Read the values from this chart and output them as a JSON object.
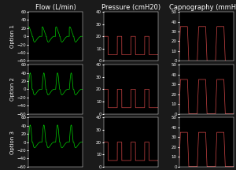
{
  "title_flow": "Flow (L/min)",
  "title_pressure": "Pressure (cmH20)",
  "title_capno": "Capnography (mmHg)",
  "row_labels": [
    "Option 1",
    "Option 2",
    "Option 3"
  ],
  "bg_color": "#000000",
  "flow_color": "#00cc00",
  "pressure_color": "#cc4444",
  "capno_color": "#cc4444",
  "flow_ylim": [
    -60,
    60
  ],
  "flow_yticks": [
    -60,
    -40,
    -20,
    0,
    20,
    40,
    60
  ],
  "pressure_ylim": [
    0,
    40
  ],
  "pressure_yticks": [
    0,
    10,
    20,
    30,
    40
  ],
  "capno_ylim": [
    0,
    50
  ],
  "capno_yticks": [
    0,
    10,
    20,
    30,
    40,
    50
  ],
  "title_fontsize": 6,
  "label_fontsize": 5,
  "tick_fontsize": 4
}
